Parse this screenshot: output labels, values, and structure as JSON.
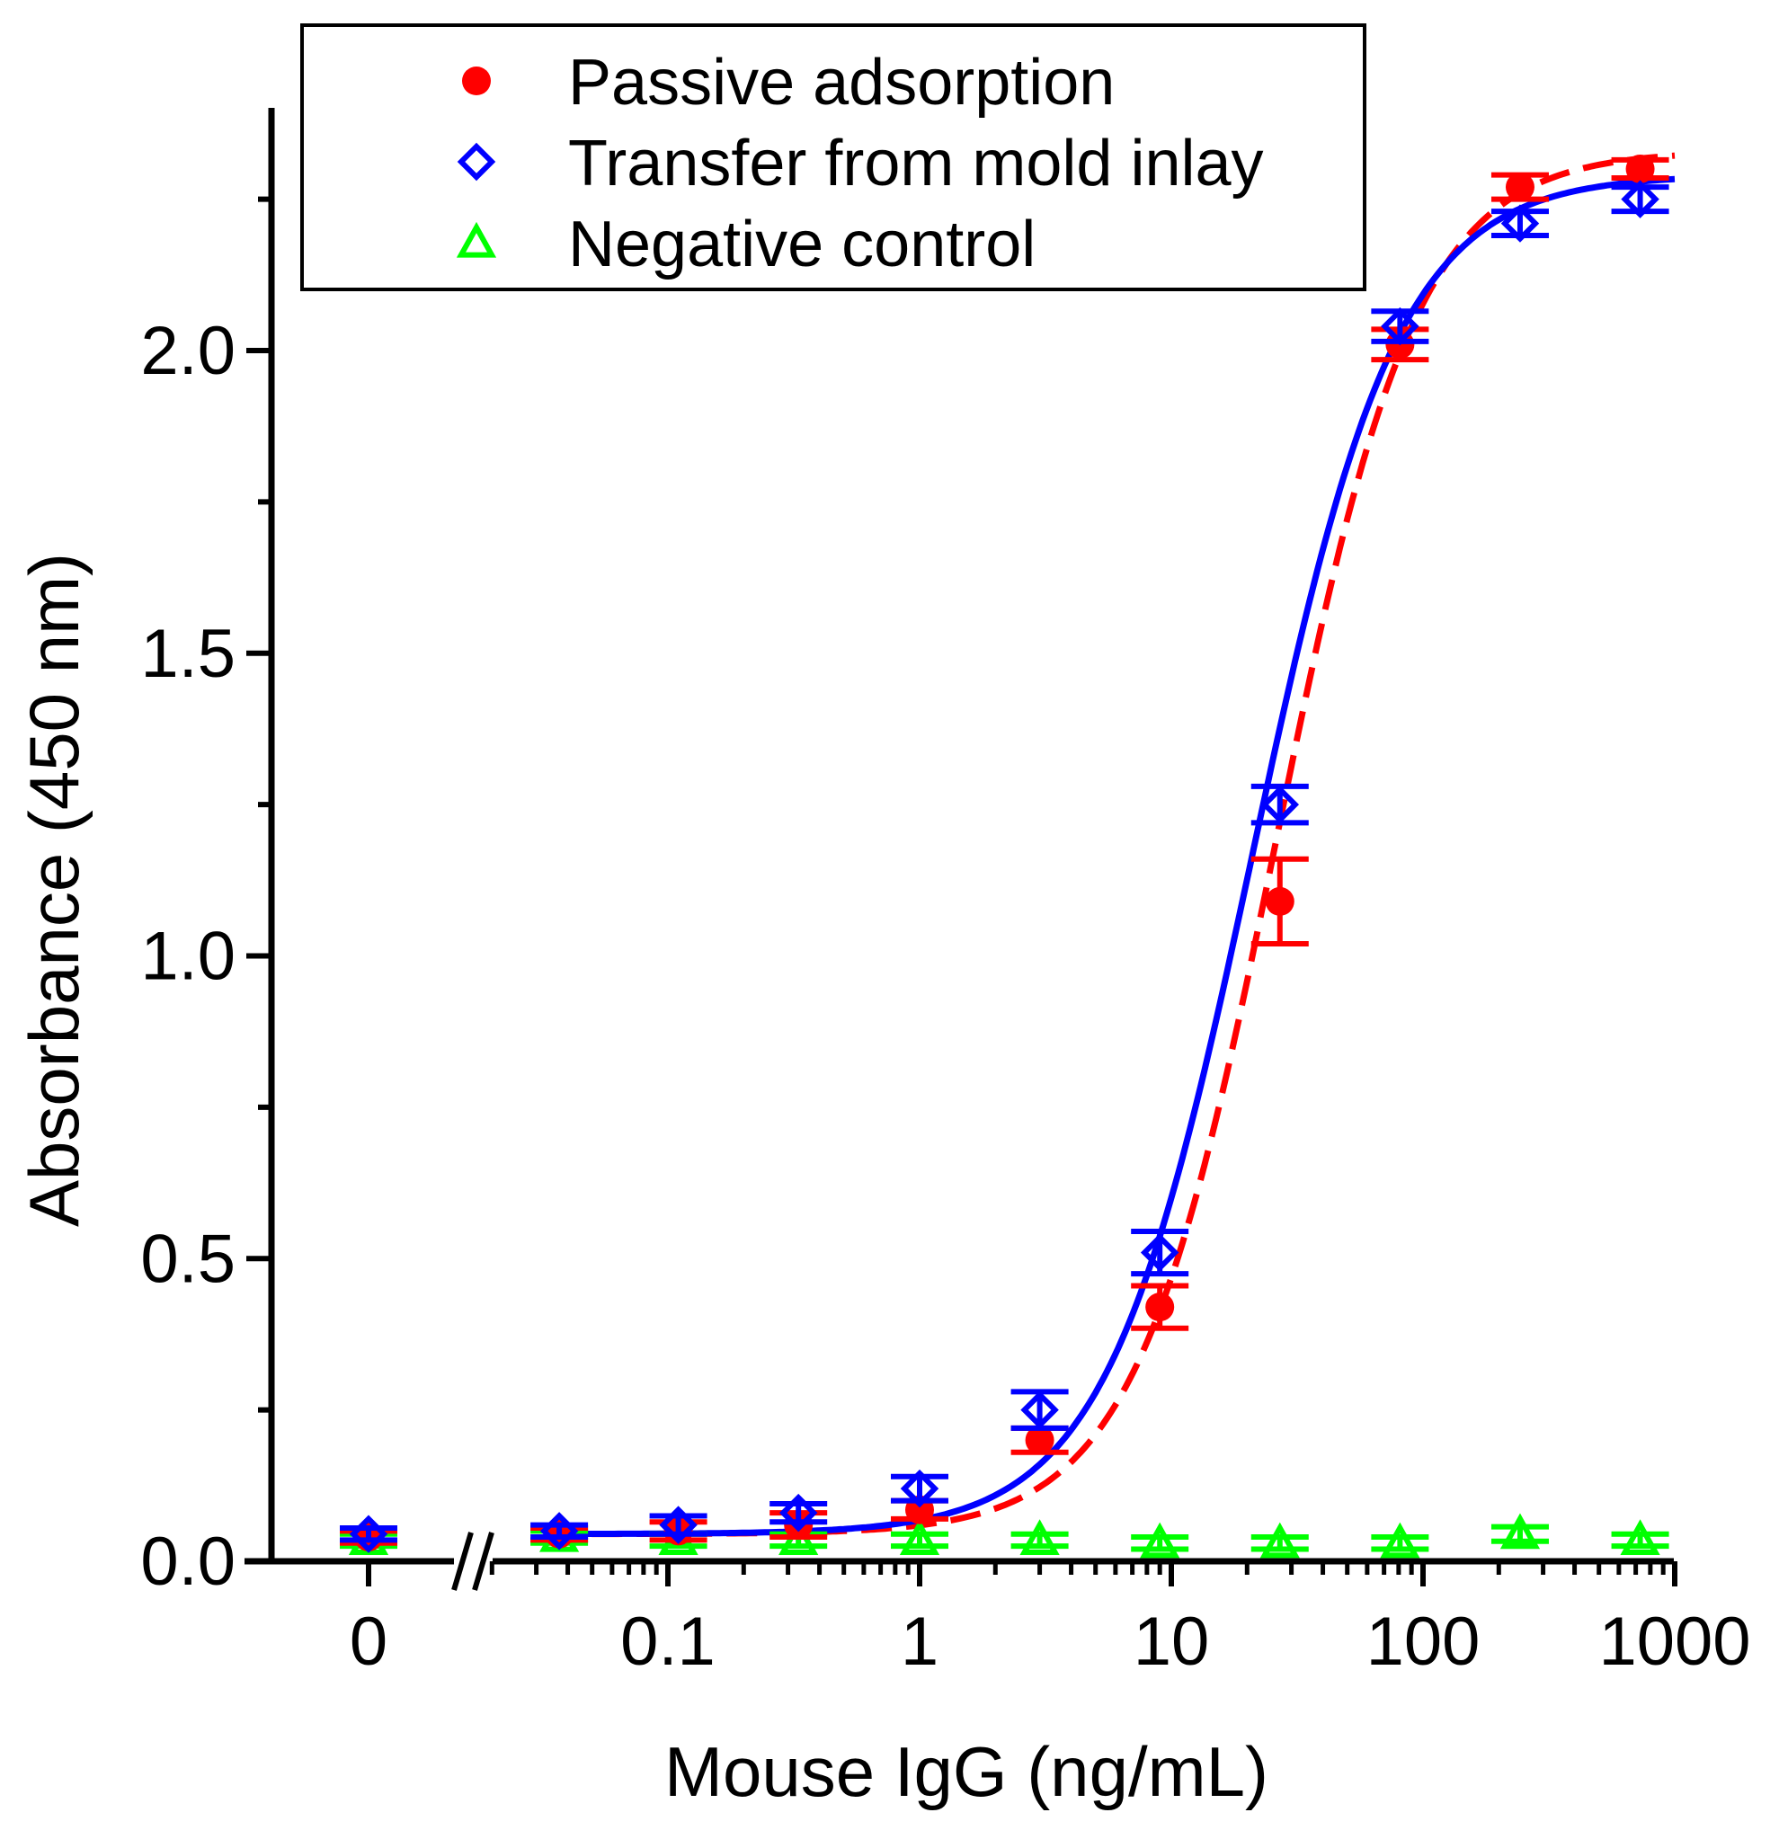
{
  "chart_data": {
    "type": "scatter",
    "xlabel": "Mouse IgG (ng/mL)",
    "ylabel": "Absorbance (450 nm)",
    "x_scale": "log",
    "x_axis_break": true,
    "xlim": [
      0.02,
      1000
    ],
    "ylim": [
      0.0,
      2.4
    ],
    "x_ticks": [
      {
        "value": 0,
        "label": "0"
      },
      {
        "value": 0.1,
        "label": "0.1"
      },
      {
        "value": 1,
        "label": "1"
      },
      {
        "value": 10,
        "label": "10"
      },
      {
        "value": 100,
        "label": "100"
      },
      {
        "value": 1000,
        "label": "1000"
      }
    ],
    "y_ticks": [
      {
        "value": 0.0,
        "label": "0.0"
      },
      {
        "value": 0.5,
        "label": "0.5"
      },
      {
        "value": 1.0,
        "label": "1.0"
      },
      {
        "value": 1.5,
        "label": "1.5"
      },
      {
        "value": 2.0,
        "label": "2.0"
      }
    ],
    "y_minor_ticks": [
      0.25,
      0.75,
      1.25,
      1.75,
      2.25
    ],
    "legend_position": "top",
    "series": [
      {
        "name": "Passive adsorption",
        "color": "#ff0000",
        "marker": "filled-circle",
        "fit_line": "dashed",
        "x": [
          0,
          0.037,
          0.11,
          0.33,
          1.0,
          3.0,
          9.0,
          27.0,
          81.0,
          243.0,
          729.0
        ],
        "y": [
          0.04,
          0.045,
          0.05,
          0.06,
          0.085,
          0.2,
          0.42,
          1.09,
          2.01,
          2.27,
          2.3
        ],
        "err": [
          0.01,
          0.01,
          0.015,
          0.02,
          0.015,
          0.02,
          0.035,
          0.07,
          0.025,
          0.02,
          0.015
        ],
        "fit": {
          "bottom": 0.045,
          "top": 2.33,
          "ec50": 26.0,
          "hill": 1.55,
          "x_start": 0.033
        }
      },
      {
        "name": "Transfer from mold inlay",
        "color": "#0000ff",
        "marker": "open-diamond",
        "fit_line": "solid",
        "x": [
          0,
          0.037,
          0.11,
          0.33,
          1.0,
          3.0,
          9.0,
          27.0,
          81.0,
          243.0,
          729.0
        ],
        "y": [
          0.045,
          0.05,
          0.06,
          0.08,
          0.12,
          0.25,
          0.51,
          1.25,
          2.04,
          2.21,
          2.25
        ],
        "err": [
          0.01,
          0.01,
          0.015,
          0.015,
          0.02,
          0.03,
          0.035,
          0.03,
          0.025,
          0.02,
          0.02
        ],
        "fit": {
          "bottom": 0.045,
          "top": 2.29,
          "ec50": 21.0,
          "hill": 1.5,
          "x_start": 0.033
        }
      },
      {
        "name": "Negative control",
        "color": "#00ff00",
        "marker": "open-triangle",
        "fit_line": "none",
        "x": [
          0,
          0.037,
          0.11,
          0.33,
          1.0,
          3.0,
          9.0,
          27.0,
          81.0,
          243.0,
          729.0
        ],
        "y": [
          0.035,
          0.04,
          0.035,
          0.035,
          0.035,
          0.035,
          0.03,
          0.03,
          0.03,
          0.045,
          0.035
        ],
        "err": [
          0.01,
          0.01,
          0.01,
          0.01,
          0.01,
          0.01,
          0.01,
          0.01,
          0.01,
          0.012,
          0.01
        ]
      }
    ]
  }
}
